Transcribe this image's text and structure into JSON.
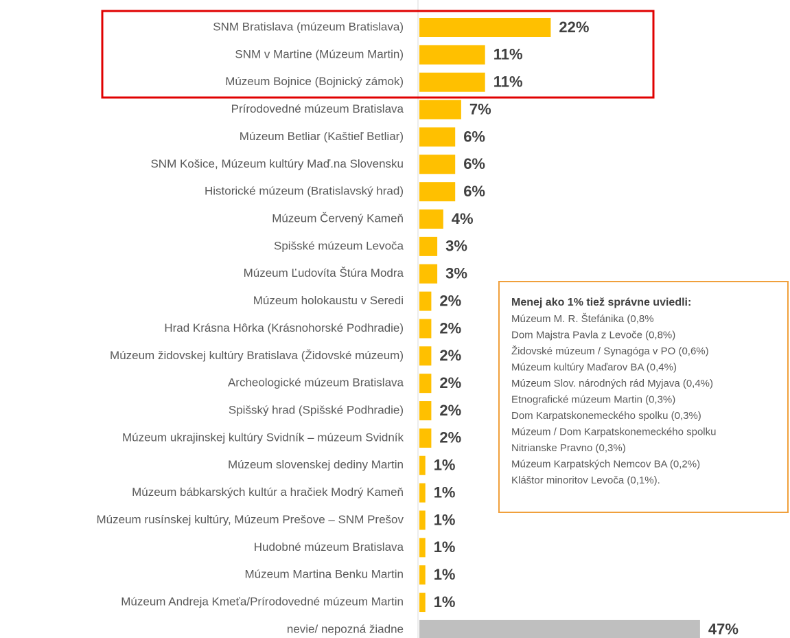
{
  "chart_data": {
    "type": "bar",
    "orientation": "horizontal",
    "categories": [
      "SNM Bratislava (múzeum Bratislava)",
      "SNM v Martine (Múzeum Martin)",
      "Múzeum Bojnice (Bojnický zámok)",
      "Prírodovedné múzeum Bratislava",
      "Múzeum Betliar (Kaštieľ Betliar)",
      "SNM Košice, Múzeum kultúry Maď.na Slovensku",
      "Historické múzeum (Bratislavský hrad)",
      "Múzeum Červený Kameň",
      "Spišské múzeum Levoča",
      "Múzeum Ľudovíta Štúra Modra",
      "Múzeum holokaustu v Seredi",
      "Hrad Krásna Hôrka (Krásnohorské Podhradie)",
      "Múzeum židovskej kultúry Bratislava (Židovské múzeum)",
      "Archeologické múzeum Bratislava",
      "Spišský hrad (Spišské Podhradie)",
      "Múzeum ukrajinskej kultúry Svidník – múzeum Svidník",
      "Múzeum slovenskej dediny Martin",
      "Múzeum bábkarských kultúr a hračiek Modrý Kameň",
      "Múzeum rusínskej kultúry, Múzeum Prešove – SNM Prešov",
      "Hudobné múzeum Bratislava",
      "Múzeum Martina Benku Martin",
      "Múzeum Andreja Kmeťa/Prírodovedné múzeum Martin",
      "nevie/ nepozná žiadne"
    ],
    "values": [
      22,
      11,
      11,
      7,
      6,
      6,
      6,
      4,
      3,
      3,
      2,
      2,
      2,
      2,
      2,
      2,
      1,
      1,
      1,
      1,
      1,
      1,
      47
    ],
    "value_labels": [
      "22%",
      "11%",
      "11%",
      "7%",
      "6%",
      "6%",
      "6%",
      "4%",
      "3%",
      "3%",
      "2%",
      "2%",
      "2%",
      "2%",
      "2%",
      "2%",
      "1%",
      "1%",
      "1%",
      "1%",
      "1%",
      "1%",
      "47%"
    ],
    "colors": [
      "#ffc000",
      "#ffc000",
      "#ffc000",
      "#ffc000",
      "#ffc000",
      "#ffc000",
      "#ffc000",
      "#ffc000",
      "#ffc000",
      "#ffc000",
      "#ffc000",
      "#ffc000",
      "#ffc000",
      "#ffc000",
      "#ffc000",
      "#ffc000",
      "#ffc000",
      "#ffc000",
      "#ffc000",
      "#ffc000",
      "#ffc000",
      "#ffc000",
      "#bfbfbf"
    ],
    "xlim": [
      0,
      50
    ],
    "annotation": {
      "title": "Menej ako 1% tiež správne uviedli:",
      "lines": [
        "Múzeum M. R. Štefánika (0,8%",
        "Dom Majstra Pavla z Levoče (0,8%)",
        "Židovské múzeum / Synagóga v PO (0,6%)",
        "Múzeum kultúry Maďarov BA (0,4%)",
        "Múzeum Slov. národných rád Myjava (0,4%)",
        "Etnografické múzeum Martin (0,3%)",
        "Dom Karpatskonemeckého spolku (0,3%)",
        "Múzeum / Dom Karpatskonemeckého spolku",
        "Nitrianske Pravno (0,3%)",
        "Múzeum Karpatských Nemcov BA (0,2%)",
        "Kláštor minoritov Levoča (0,1%)."
      ]
    }
  }
}
